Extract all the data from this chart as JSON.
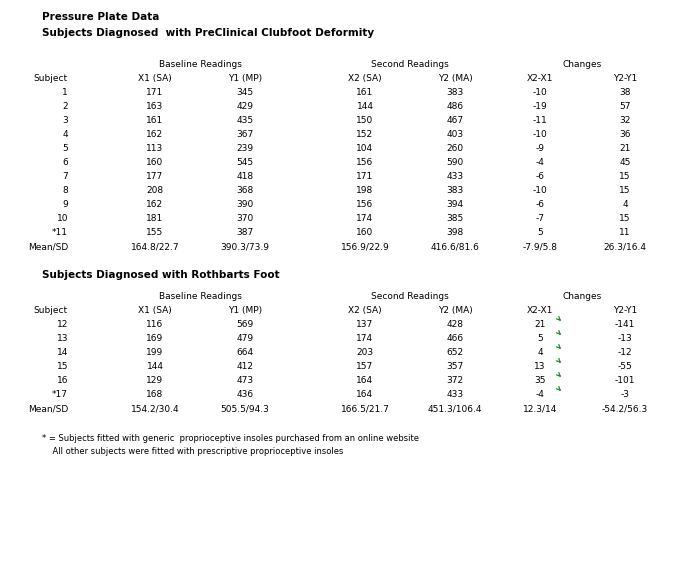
{
  "title": "Pressure Plate Data",
  "subtitle1": "Subjects Diagnosed  with PreClinical Clubfoot Deformity",
  "subtitle2": "Subjects Diagnosed with Rothbarts Foot",
  "footnote1": "* = Subjects fitted with generic  proprioceptive insoles purchased from an online website",
  "footnote2": "    All other subjects were fitted with prescriptive proprioceptive insoles",
  "section1": {
    "col_headers": [
      "Subject",
      "X1 (SA)",
      "Y1 (MP)",
      "X2 (SA)",
      "Y2 (MA)",
      "X2-X1",
      "Y2-Y1"
    ],
    "rows": [
      [
        "1",
        "171",
        "345",
        "161",
        "383",
        "-10",
        "38"
      ],
      [
        "2",
        "163",
        "429",
        "144",
        "486",
        "-19",
        "57"
      ],
      [
        "3",
        "161",
        "435",
        "150",
        "467",
        "-11",
        "32"
      ],
      [
        "4",
        "162",
        "367",
        "152",
        "403",
        "-10",
        "36"
      ],
      [
        "5",
        "113",
        "239",
        "104",
        "260",
        "-9",
        "21"
      ],
      [
        "6",
        "160",
        "545",
        "156",
        "590",
        "-4",
        "45"
      ],
      [
        "7",
        "177",
        "418",
        "171",
        "433",
        "-6",
        "15"
      ],
      [
        "8",
        "208",
        "368",
        "198",
        "383",
        "-10",
        "15"
      ],
      [
        "9",
        "162",
        "390",
        "156",
        "394",
        "-6",
        "4"
      ],
      [
        "10",
        "181",
        "370",
        "174",
        "385",
        "-7",
        "15"
      ],
      [
        "*11",
        "155",
        "387",
        "160",
        "398",
        "5",
        "11"
      ]
    ],
    "mean_row": [
      "Mean/SD",
      "164.8/22.7",
      "390.3/73.9",
      "156.9/22.9",
      "416.6/81.6",
      "-7.9/5.8",
      "26.3/16.4"
    ]
  },
  "section2": {
    "col_headers": [
      "Subject",
      "X1 (SA)",
      "Y1 (MP)",
      "X2 (SA)",
      "Y2 (MA)",
      "X2-X1",
      "Y2-Y1"
    ],
    "rows": [
      [
        "12",
        "116",
        "569",
        "137",
        "428",
        "21",
        "-141"
      ],
      [
        "13",
        "169",
        "479",
        "174",
        "466",
        "5",
        "-13"
      ],
      [
        "14",
        "199",
        "664",
        "203",
        "652",
        "4",
        "-12"
      ],
      [
        "15",
        "144",
        "412",
        "157",
        "357",
        "13",
        "-55"
      ],
      [
        "16",
        "129",
        "473",
        "164",
        "372",
        "35",
        "-101"
      ],
      [
        "*17",
        "168",
        "436",
        "164",
        "433",
        "-4",
        "-3"
      ]
    ],
    "mean_row": [
      "Mean/SD",
      "154.2/30.4",
      "505.5/94.3",
      "166.5/21.7",
      "451.3/106.4",
      "12.3/14",
      "-54.2/56.3"
    ]
  },
  "bg_color": "#ffffff",
  "text_color": "#000000",
  "green_color": "#228B22"
}
